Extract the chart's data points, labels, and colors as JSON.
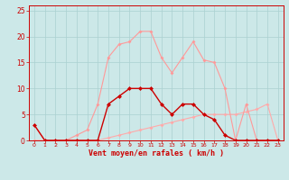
{
  "x": [
    0,
    1,
    2,
    3,
    4,
    5,
    6,
    7,
    8,
    9,
    10,
    11,
    12,
    13,
    14,
    15,
    16,
    17,
    18,
    19,
    20,
    21,
    22,
    23
  ],
  "dark_red": [
    3,
    0,
    0,
    0,
    0,
    0,
    0,
    7,
    8.5,
    10,
    10,
    10,
    7,
    5,
    7,
    7,
    5,
    4,
    1,
    0,
    0,
    0,
    0,
    0
  ],
  "light_pink": [
    3,
    0,
    0,
    0,
    1,
    2,
    7,
    16,
    18.5,
    19,
    21,
    21,
    16,
    13,
    16,
    19,
    15.5,
    15,
    10,
    0,
    7,
    0,
    0,
    0
  ],
  "avg_line": [
    0,
    0,
    0,
    0,
    0,
    0,
    0,
    0.5,
    1,
    1.5,
    2,
    2.5,
    3,
    3.5,
    4,
    4.5,
    5,
    5,
    5,
    5,
    5.5,
    6,
    7,
    0
  ],
  "bg_color": "#cce8e8",
  "grid_color": "#aad0d0",
  "dark_red_color": "#cc0000",
  "light_pink_color": "#ff9999",
  "avg_line_color": "#ffaaaa",
  "xlabel": "Vent moyen/en rafales ( km/h )",
  "ylim": [
    0,
    26
  ],
  "xlim": [
    -0.5,
    23.5
  ],
  "yticks": [
    0,
    5,
    10,
    15,
    20,
    25
  ],
  "xticks": [
    0,
    1,
    2,
    3,
    4,
    5,
    6,
    7,
    8,
    9,
    10,
    11,
    12,
    13,
    14,
    15,
    16,
    17,
    18,
    19,
    20,
    21,
    22,
    23
  ],
  "xlabel_fontsize": 6,
  "tick_fontsize_x": 4.5,
  "tick_fontsize_y": 5.5
}
